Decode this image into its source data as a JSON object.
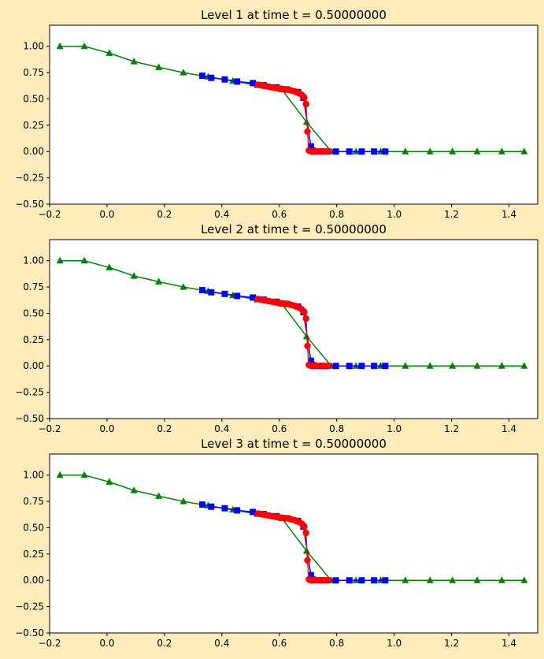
{
  "figure": {
    "background": "#ffecbd",
    "panel_background": "#ffffff"
  },
  "chart_data": [
    {
      "type": "line",
      "title": "Level 1 at time t =      0.50000000",
      "xlim": [
        -0.2,
        1.5
      ],
      "ylim": [
        -0.5,
        1.2
      ],
      "xticks": [
        -0.2,
        0.0,
        0.2,
        0.4,
        0.6,
        0.8,
        1.0,
        1.2,
        1.4
      ],
      "xtick_labels": [
        "−0.2",
        "0.0",
        "0.2",
        "0.4",
        "0.6",
        "0.8",
        "1.0",
        "1.2",
        "1.4"
      ],
      "yticks": [
        -0.5,
        -0.25,
        0.0,
        0.25,
        0.5,
        0.75,
        1.0
      ],
      "ytick_labels": [
        "−0.50",
        "−0.25",
        "0.00",
        "0.25",
        "0.50",
        "0.75",
        "1.00"
      ],
      "grid": false,
      "series": [
        {
          "color": "#008000",
          "marker": "triangle",
          "x": [
            -0.164,
            -0.079,
            0.008,
            0.094,
            0.18,
            0.266,
            0.352,
            0.438,
            0.523,
            0.609,
            0.695,
            0.781,
            0.867,
            0.953,
            1.039,
            1.125,
            1.203,
            1.289,
            1.375,
            1.453
          ],
          "y": [
            1.0,
            1.0,
            0.935,
            0.855,
            0.8,
            0.75,
            0.71,
            0.67,
            0.63,
            0.59,
            0.28,
            0.0,
            0.0,
            0.0,
            0.0,
            0.0,
            0.0,
            0.0,
            0.0,
            0.0
          ]
        },
        {
          "color": "#0000ff",
          "marker": "square",
          "x": [
            0.332,
            0.363,
            0.41,
            0.453,
            0.508,
            0.545,
            0.59,
            0.625,
            0.665,
            0.684,
            0.71,
            0.75,
            0.797,
            0.844,
            0.887,
            0.93,
            0.969
          ],
          "y": [
            0.72,
            0.7,
            0.685,
            0.665,
            0.65,
            0.63,
            0.61,
            0.59,
            0.565,
            0.51,
            0.05,
            0.0,
            0.0,
            0.0,
            0.0,
            0.0,
            0.0
          ]
        },
        {
          "color": "#ff0000",
          "marker": "circle",
          "x": [
            0.526,
            0.535,
            0.545,
            0.555,
            0.565,
            0.575,
            0.585,
            0.595,
            0.605,
            0.615,
            0.625,
            0.635,
            0.645,
            0.655,
            0.664,
            0.672,
            0.68,
            0.687,
            0.693,
            0.698,
            0.703,
            0.708,
            0.713,
            0.718,
            0.725,
            0.733,
            0.741,
            0.749,
            0.757,
            0.765,
            0.773
          ],
          "y": [
            0.635,
            0.63,
            0.625,
            0.62,
            0.615,
            0.61,
            0.605,
            0.6,
            0.597,
            0.593,
            0.59,
            0.585,
            0.577,
            0.57,
            0.56,
            0.55,
            0.535,
            0.51,
            0.45,
            0.19,
            0.01,
            0.003,
            0.0,
            0.0,
            0.0,
            0.0,
            0.0,
            0.0,
            0.0,
            0.0,
            0.0
          ]
        }
      ]
    },
    {
      "type": "line",
      "title": "Level 2 at time t =      0.50000000",
      "xlim": [
        -0.2,
        1.5
      ],
      "ylim": [
        -0.5,
        1.2
      ],
      "xticks": [
        -0.2,
        0.0,
        0.2,
        0.4,
        0.6,
        0.8,
        1.0,
        1.2,
        1.4
      ],
      "xtick_labels": [
        "−0.2",
        "0.0",
        "0.2",
        "0.4",
        "0.6",
        "0.8",
        "1.0",
        "1.2",
        "1.4"
      ],
      "yticks": [
        -0.5,
        -0.25,
        0.0,
        0.25,
        0.5,
        0.75,
        1.0
      ],
      "ytick_labels": [
        "−0.50",
        "−0.25",
        "0.00",
        "0.25",
        "0.50",
        "0.75",
        "1.00"
      ],
      "grid": false,
      "series": [
        {
          "color": "#008000",
          "marker": "triangle",
          "x": [
            -0.164,
            -0.079,
            0.008,
            0.094,
            0.18,
            0.266,
            0.352,
            0.438,
            0.523,
            0.609,
            0.695,
            0.781,
            0.867,
            0.953,
            1.039,
            1.125,
            1.203,
            1.289,
            1.375,
            1.453
          ],
          "y": [
            1.0,
            1.0,
            0.935,
            0.855,
            0.8,
            0.75,
            0.71,
            0.67,
            0.63,
            0.59,
            0.28,
            0.0,
            0.0,
            0.0,
            0.0,
            0.0,
            0.0,
            0.0,
            0.0,
            0.0
          ]
        },
        {
          "color": "#0000ff",
          "marker": "square",
          "x": [
            0.332,
            0.363,
            0.41,
            0.453,
            0.508,
            0.545,
            0.59,
            0.625,
            0.665,
            0.684,
            0.71,
            0.75,
            0.797,
            0.844,
            0.887,
            0.93,
            0.969
          ],
          "y": [
            0.72,
            0.7,
            0.685,
            0.665,
            0.65,
            0.63,
            0.61,
            0.59,
            0.565,
            0.51,
            0.05,
            0.0,
            0.0,
            0.0,
            0.0,
            0.0,
            0.0
          ]
        },
        {
          "color": "#ff0000",
          "marker": "circle",
          "x": [
            0.526,
            0.535,
            0.545,
            0.555,
            0.565,
            0.575,
            0.585,
            0.595,
            0.605,
            0.615,
            0.625,
            0.635,
            0.645,
            0.655,
            0.664,
            0.672,
            0.68,
            0.687,
            0.693,
            0.698,
            0.703,
            0.708,
            0.713,
            0.718,
            0.725,
            0.733,
            0.741,
            0.749,
            0.757,
            0.765,
            0.773
          ],
          "y": [
            0.635,
            0.63,
            0.625,
            0.62,
            0.615,
            0.61,
            0.605,
            0.6,
            0.597,
            0.593,
            0.59,
            0.585,
            0.577,
            0.57,
            0.56,
            0.55,
            0.535,
            0.51,
            0.45,
            0.19,
            0.01,
            0.003,
            0.0,
            0.0,
            0.0,
            0.0,
            0.0,
            0.0,
            0.0,
            0.0,
            0.0
          ]
        }
      ]
    },
    {
      "type": "line",
      "title": "Level 3 at time t =      0.50000000",
      "xlim": [
        -0.2,
        1.5
      ],
      "ylim": [
        -0.5,
        1.2
      ],
      "xticks": [
        -0.2,
        0.0,
        0.2,
        0.4,
        0.6,
        0.8,
        1.0,
        1.2,
        1.4
      ],
      "xtick_labels": [
        "−0.2",
        "0.0",
        "0.2",
        "0.4",
        "0.6",
        "0.8",
        "1.0",
        "1.2",
        "1.4"
      ],
      "yticks": [
        -0.5,
        -0.25,
        0.0,
        0.25,
        0.5,
        0.75,
        1.0
      ],
      "ytick_labels": [
        "−0.50",
        "−0.25",
        "0.00",
        "0.25",
        "0.50",
        "0.75",
        "1.00"
      ],
      "grid": false,
      "series": [
        {
          "color": "#008000",
          "marker": "triangle",
          "x": [
            -0.164,
            -0.079,
            0.008,
            0.094,
            0.18,
            0.266,
            0.352,
            0.438,
            0.523,
            0.609,
            0.695,
            0.781,
            0.867,
            0.953,
            1.039,
            1.125,
            1.203,
            1.289,
            1.375,
            1.453
          ],
          "y": [
            1.0,
            1.0,
            0.935,
            0.855,
            0.8,
            0.75,
            0.71,
            0.67,
            0.63,
            0.59,
            0.28,
            0.0,
            0.0,
            0.0,
            0.0,
            0.0,
            0.0,
            0.0,
            0.0,
            0.0
          ]
        },
        {
          "color": "#0000ff",
          "marker": "square",
          "x": [
            0.332,
            0.363,
            0.41,
            0.453,
            0.508,
            0.545,
            0.59,
            0.625,
            0.665,
            0.684,
            0.71,
            0.75,
            0.797,
            0.844,
            0.887,
            0.93,
            0.969
          ],
          "y": [
            0.72,
            0.7,
            0.685,
            0.665,
            0.65,
            0.63,
            0.61,
            0.59,
            0.565,
            0.51,
            0.05,
            0.0,
            0.0,
            0.0,
            0.0,
            0.0,
            0.0
          ]
        },
        {
          "color": "#ff0000",
          "marker": "circle",
          "x": [
            0.526,
            0.535,
            0.545,
            0.555,
            0.565,
            0.575,
            0.585,
            0.595,
            0.605,
            0.615,
            0.625,
            0.635,
            0.645,
            0.655,
            0.664,
            0.672,
            0.68,
            0.687,
            0.693,
            0.698,
            0.703,
            0.708,
            0.713,
            0.718,
            0.725,
            0.733,
            0.741,
            0.749,
            0.757,
            0.765,
            0.773
          ],
          "y": [
            0.635,
            0.63,
            0.625,
            0.62,
            0.615,
            0.61,
            0.605,
            0.6,
            0.597,
            0.593,
            0.59,
            0.585,
            0.577,
            0.57,
            0.56,
            0.55,
            0.535,
            0.51,
            0.45,
            0.19,
            0.01,
            0.003,
            0.0,
            0.0,
            0.0,
            0.0,
            0.0,
            0.0,
            0.0,
            0.0,
            0.0
          ]
        }
      ]
    }
  ]
}
